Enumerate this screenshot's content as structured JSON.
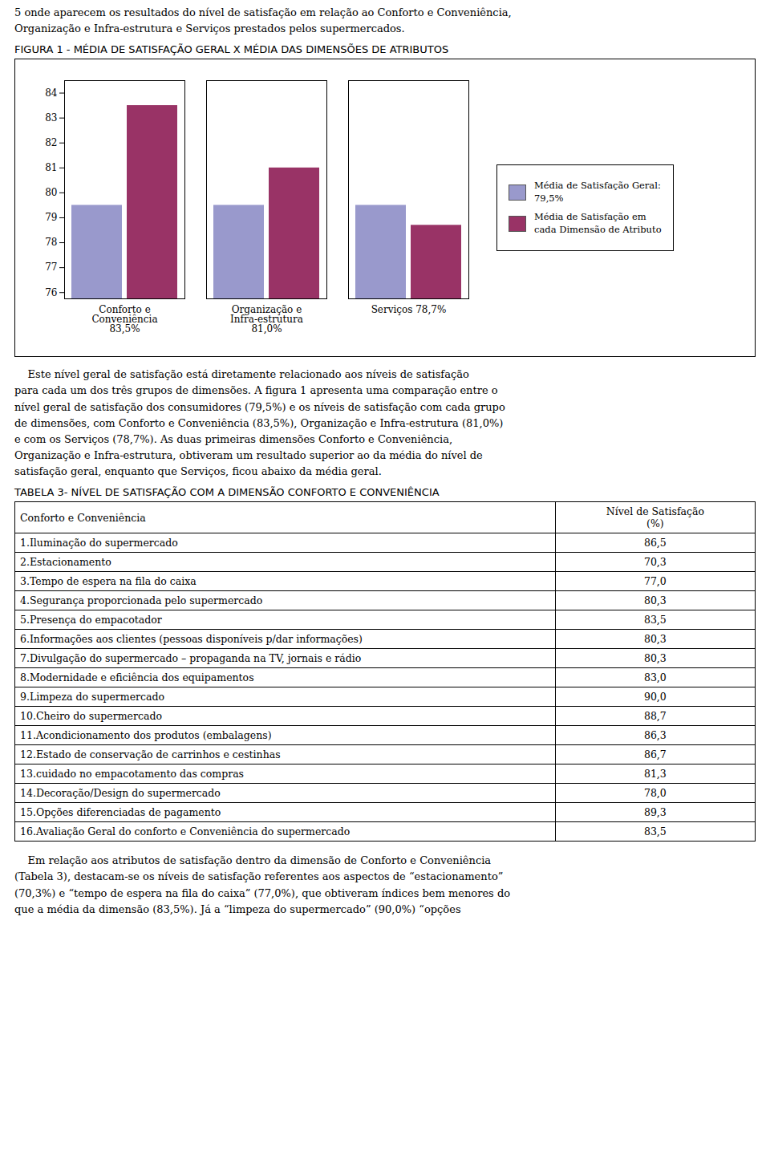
{
  "chart_data": {
    "type": "bar",
    "title": "FIGURA 1 - MÉDIA DE SATISFAÇÃO GERAL X MÉDIA DAS DIMENSÕES DE ATRIBUTOS",
    "categories": [
      "Conforto e\nConveniência\n83,5%",
      "Organização e\nInfra-estrutura\n81,0%",
      "Serviços 78,7%"
    ],
    "series": [
      {
        "name": "Média de Satisfação Geral:\n79,5%",
        "color": "#9999cc",
        "values": [
          79.5,
          79.5,
          79.5
        ]
      },
      {
        "name": "Média de Satisfação em\ncada Dimensão de Atributo",
        "color": "#993366",
        "values": [
          83.5,
          81.0,
          78.7
        ]
      }
    ],
    "ylim": [
      75.75,
      84.5
    ],
    "yticks": [
      76,
      77,
      78,
      79,
      80,
      81,
      82,
      83,
      84
    ],
    "grid": false,
    "legend": "right"
  },
  "top_text": "5 onde aparecem os resultados do nível de satisfação em relação ao Conforto e Conveniência,\nOrganização e Infra-estrutura e Serviços prestados pelos supermercados.",
  "text1": "    Este nível geral de satisfação está diretamente relacionado aos níveis de satisfação\npara cada um dos três grupos de dimensões. A figura 1 apresenta uma comparação entre o\nnível geral de satisfação dos consumidores (79,5%) e os níveis de satisfação com cada grupo\nde dimensões, com Conforto e Conveniência (83,5%), Organização e Infra-estrutura (81,0%)\ne com os Serviços (78,7%). As duas primeiras dimensões Conforto e Conveniência,\nOrganização e Infra-estrutura, obtiveram um resultado superior ao da média do nível de\nsatisfação geral, enquanto que Serviços, ficou abaixo da média geral.",
  "table": {
    "title": "TABELA 3- NÍVEL DE SATISFAÇÃO COM A DIMENSÃO CONFORTO E CONVENIÊNCIA",
    "header": [
      "Conforto e Conveniência",
      "Nível de Satisfação\n(%)"
    ],
    "rows": [
      [
        "1.Iluminação do supermercado",
        "86,5"
      ],
      [
        "2.Estacionamento",
        "70,3"
      ],
      [
        "3.Tempo de espera na fila do caixa",
        "77,0"
      ],
      [
        "4.Segurança proporcionada pelo supermercado",
        "80,3"
      ],
      [
        "5.Presença do empacotador",
        "83,5"
      ],
      [
        "6.Informações aos clientes (pessoas disponíveis p/dar informações)",
        "80,3"
      ],
      [
        "7.Divulgação do supermercado – propaganda na TV, jornais e rádio",
        "80,3"
      ],
      [
        "8.Modernidade e eficiência dos equipamentos",
        "83,0"
      ],
      [
        "9.Limpeza do supermercado",
        "90,0"
      ],
      [
        "10.Cheiro do supermercado",
        "88,7"
      ],
      [
        "11.Acondicionamento dos produtos (embalagens)",
        "86,3"
      ],
      [
        "12.Estado de conservação de carrinhos e cestinhas",
        "86,7"
      ],
      [
        "13.cuidado no empacotamento das compras",
        "81,3"
      ],
      [
        "14.Decoração/Design do supermercado",
        "78,0"
      ],
      [
        "15.Opções diferenciadas de pagamento",
        "89,3"
      ],
      [
        "16.Avaliação Geral do conforto e Conveniência do supermercado",
        "83,5"
      ]
    ]
  },
  "text2": "    Em relação aos atributos de satisfação dentro da dimensão de Conforto e Conveniência\n(Tabela 3), destacam-se os níveis de satisfação referentes aos aspectos de “estacionamento”\n(70,3%) e “tempo de espera na fila do caixa” (77,0%), que obtiveram índices bem menores do\nque a média da dimensão (83,5%). Já a “limpeza do supermercado” (90,0%) “opções"
}
